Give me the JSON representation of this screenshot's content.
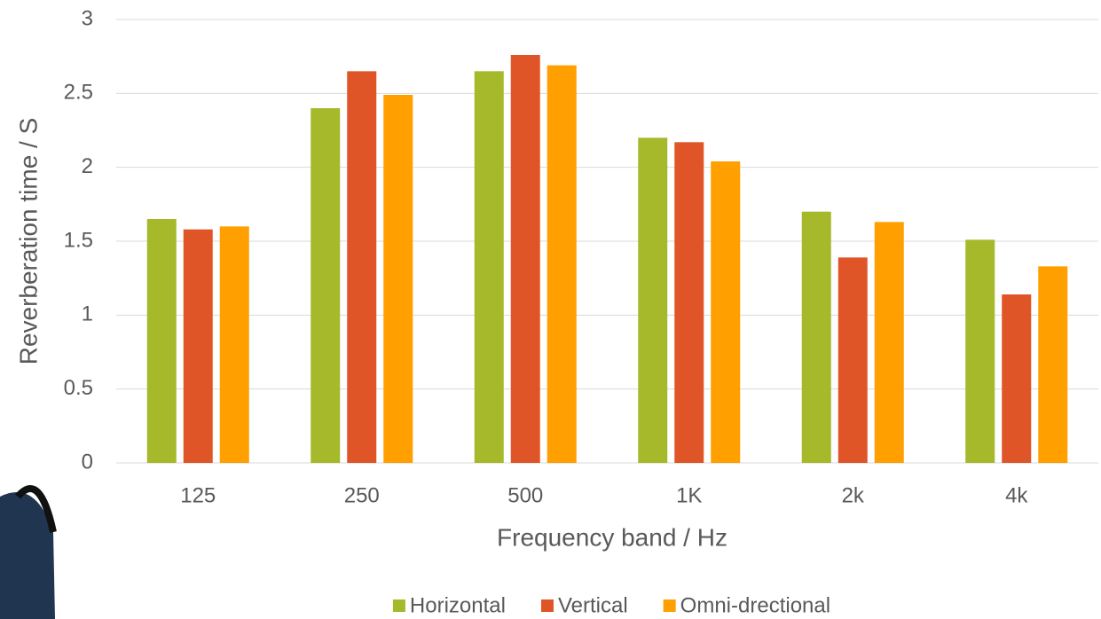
{
  "chart_data": {
    "type": "bar",
    "x_label": "Frequency band / Hz",
    "y_label": "Reverberation time / S",
    "categories": [
      "125",
      "250",
      "500",
      "1K",
      "2k",
      "4k"
    ],
    "series": [
      {
        "name": "Horizontal",
        "color": "#a5b92a",
        "values": [
          1.65,
          2.4,
          2.65,
          2.2,
          1.7,
          1.51
        ]
      },
      {
        "name": "Vertical",
        "color": "#e05527",
        "values": [
          1.58,
          2.65,
          2.76,
          2.17,
          1.39,
          1.14
        ]
      },
      {
        "name": "Omni-drectional",
        "color": "#ff9f00",
        "values": [
          1.6,
          2.49,
          2.69,
          2.04,
          1.63,
          1.33
        ]
      }
    ],
    "ylim": [
      0,
      3
    ],
    "yticks": [
      0,
      0.5,
      1,
      1.5,
      2,
      2.5,
      3
    ],
    "grid": true,
    "legend": "bottom"
  }
}
